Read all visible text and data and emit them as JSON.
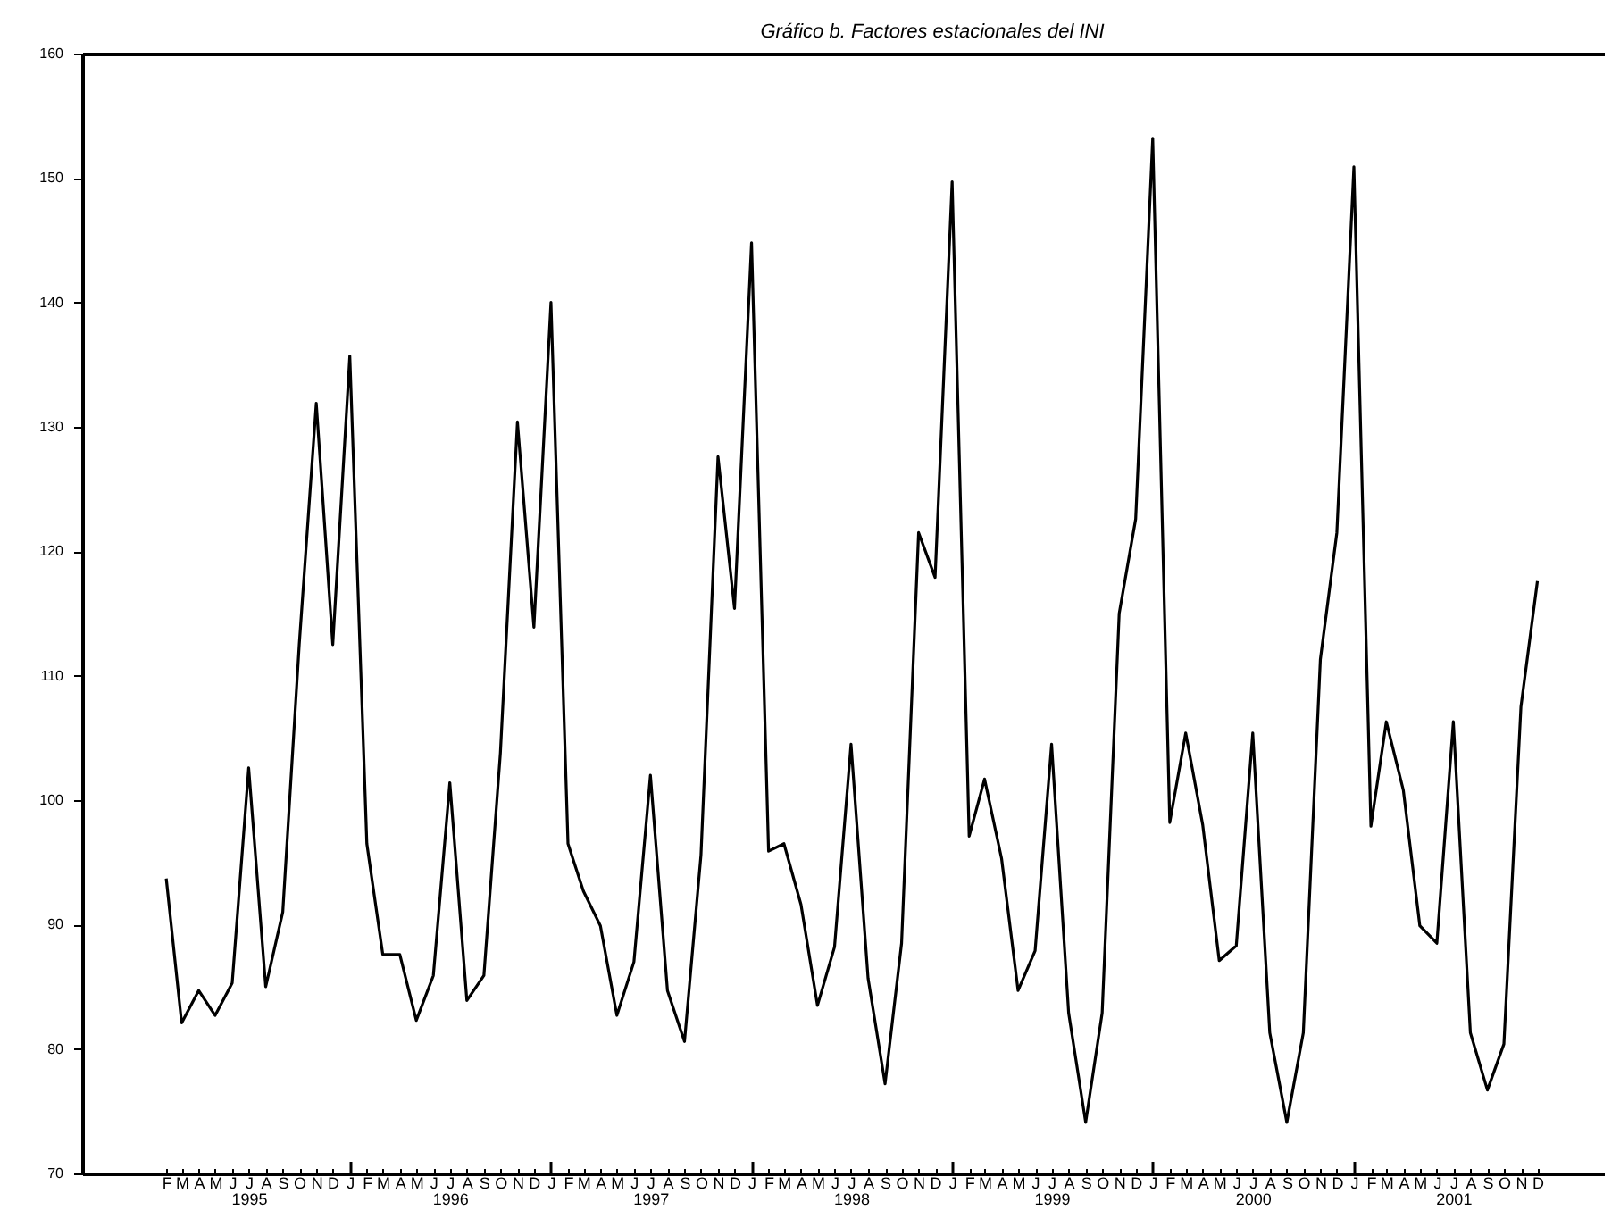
{
  "chart_data": {
    "type": "line",
    "title": "Gráfico b.  Factores estacionales del INI",
    "x": [
      "1995-02",
      "1995-03",
      "1995-04",
      "1995-05",
      "1995-06",
      "1995-07",
      "1995-08",
      "1995-09",
      "1995-10",
      "1995-11",
      "1995-12",
      "1996-01",
      "1996-02",
      "1996-03",
      "1996-04",
      "1996-05",
      "1996-06",
      "1996-07",
      "1996-08",
      "1996-09",
      "1996-10",
      "1996-11",
      "1996-12",
      "1997-01",
      "1997-02",
      "1997-03",
      "1997-04",
      "1997-05",
      "1997-06",
      "1997-07",
      "1997-08",
      "1997-09",
      "1997-10",
      "1997-11",
      "1997-12",
      "1998-01",
      "1998-02",
      "1998-03",
      "1998-04",
      "1998-05",
      "1998-06",
      "1998-07",
      "1998-08",
      "1998-09",
      "1998-10",
      "1998-11",
      "1998-12",
      "1999-01",
      "1999-02",
      "1999-03",
      "1999-04",
      "1999-05",
      "1999-06",
      "1999-07",
      "1999-08",
      "1999-09",
      "1999-10",
      "1999-11",
      "1999-12",
      "2000-01",
      "2000-02",
      "2000-03",
      "2000-04",
      "2000-05",
      "2000-06",
      "2000-07",
      "2000-08",
      "2000-09",
      "2000-10",
      "2000-11",
      "2000-12",
      "2001-01",
      "2001-02",
      "2001-03",
      "2001-04",
      "2001-05",
      "2001-06",
      "2001-07",
      "2001-08",
      "2001-09",
      "2001-10",
      "2001-11",
      "2001-12"
    ],
    "series": [
      {
        "color": "#000000",
        "values": [
          93.7,
          82.1,
          84.7,
          82.7,
          85.3,
          102.6,
          85.0,
          91.0,
          112.5,
          131.9,
          112.5,
          135.7,
          96.5,
          87.6,
          87.6,
          82.3,
          85.9,
          101.4,
          83.9,
          85.9,
          103.8,
          130.4,
          113.9,
          140.0,
          96.5,
          92.7,
          89.9,
          82.7,
          87.0,
          102.0,
          84.7,
          80.6,
          95.6,
          127.6,
          115.4,
          144.8,
          95.9,
          96.5,
          91.6,
          83.5,
          88.2,
          104.5,
          85.7,
          77.2,
          88.5,
          121.5,
          117.9,
          149.7,
          97.1,
          101.7,
          95.3,
          84.7,
          87.9,
          104.5,
          82.9,
          74.1,
          82.9,
          115.0,
          122.6,
          153.2,
          98.2,
          105.4,
          98.0,
          87.1,
          88.3,
          105.4,
          81.3,
          74.1,
          81.3,
          111.3,
          121.5,
          150.9,
          97.9,
          106.3,
          100.8,
          89.9,
          88.5,
          106.3,
          81.3,
          76.7,
          80.4,
          107.5,
          117.6
        ]
      }
    ],
    "xlim": [
      "1994-09",
      "2002-04"
    ],
    "xticks": [
      {
        "value": "1995-02",
        "label": "F"
      },
      {
        "value": "1995-03",
        "label": "M"
      },
      {
        "value": "1995-04",
        "label": "A"
      },
      {
        "value": "1995-05",
        "label": "M"
      },
      {
        "value": "1995-06",
        "label": "J"
      },
      {
        "value": "1995-07",
        "label": "J\n1995"
      },
      {
        "value": "1995-08",
        "label": "A"
      },
      {
        "value": "1995-09",
        "label": "S"
      },
      {
        "value": "1995-10",
        "label": "O"
      },
      {
        "value": "1995-11",
        "label": "N"
      },
      {
        "value": "1995-12",
        "label": "D"
      },
      {
        "value": "1996-01",
        "label": "J"
      },
      {
        "value": "1996-02",
        "label": "F"
      },
      {
        "value": "1996-03",
        "label": "M"
      },
      {
        "value": "1996-04",
        "label": "A"
      },
      {
        "value": "1996-05",
        "label": "M"
      },
      {
        "value": "1996-06",
        "label": "J"
      },
      {
        "value": "1996-07",
        "label": "J\n1996"
      },
      {
        "value": "1996-08",
        "label": "A"
      },
      {
        "value": "1996-09",
        "label": "S"
      },
      {
        "value": "1996-10",
        "label": "O"
      },
      {
        "value": "1996-11",
        "label": "N"
      },
      {
        "value": "1996-12",
        "label": "D"
      },
      {
        "value": "1997-01",
        "label": "J"
      },
      {
        "value": "1997-02",
        "label": "F"
      },
      {
        "value": "1997-03",
        "label": "M"
      },
      {
        "value": "1997-04",
        "label": "A"
      },
      {
        "value": "1997-05",
        "label": "M"
      },
      {
        "value": "1997-06",
        "label": "J"
      },
      {
        "value": "1997-07",
        "label": "J\n1997"
      },
      {
        "value": "1997-08",
        "label": "A"
      },
      {
        "value": "1997-09",
        "label": "S"
      },
      {
        "value": "1997-10",
        "label": "O"
      },
      {
        "value": "1997-11",
        "label": "N"
      },
      {
        "value": "1997-12",
        "label": "D"
      },
      {
        "value": "1998-01",
        "label": "J"
      },
      {
        "value": "1998-02",
        "label": "F"
      },
      {
        "value": "1998-03",
        "label": "M"
      },
      {
        "value": "1998-04",
        "label": "A"
      },
      {
        "value": "1998-05",
        "label": "M"
      },
      {
        "value": "1998-06",
        "label": "J"
      },
      {
        "value": "1998-07",
        "label": "J\n1998"
      },
      {
        "value": "1998-08",
        "label": "A"
      },
      {
        "value": "1998-09",
        "label": "S"
      },
      {
        "value": "1998-10",
        "label": "O"
      },
      {
        "value": "1998-11",
        "label": "N"
      },
      {
        "value": "1998-12",
        "label": "D"
      },
      {
        "value": "1999-01",
        "label": "J"
      },
      {
        "value": "1999-02",
        "label": "F"
      },
      {
        "value": "1999-03",
        "label": "M"
      },
      {
        "value": "1999-04",
        "label": "A"
      },
      {
        "value": "1999-05",
        "label": "M"
      },
      {
        "value": "1999-06",
        "label": "J"
      },
      {
        "value": "1999-07",
        "label": "J\n1999"
      },
      {
        "value": "1999-08",
        "label": "A"
      },
      {
        "value": "1999-09",
        "label": "S"
      },
      {
        "value": "1999-10",
        "label": "O"
      },
      {
        "value": "1999-11",
        "label": "N"
      },
      {
        "value": "1999-12",
        "label": "D"
      },
      {
        "value": "2000-01",
        "label": "J"
      },
      {
        "value": "2000-02",
        "label": "F"
      },
      {
        "value": "2000-03",
        "label": "M"
      },
      {
        "value": "2000-04",
        "label": "A"
      },
      {
        "value": "2000-05",
        "label": "M"
      },
      {
        "value": "2000-06",
        "label": "J"
      },
      {
        "value": "2000-07",
        "label": "J\n2000"
      },
      {
        "value": "2000-08",
        "label": "A"
      },
      {
        "value": "2000-09",
        "label": "S"
      },
      {
        "value": "2000-10",
        "label": "O"
      },
      {
        "value": "2000-11",
        "label": "N"
      },
      {
        "value": "2000-12",
        "label": "D"
      },
      {
        "value": "2001-01",
        "label": "J"
      },
      {
        "value": "2001-02",
        "label": "F"
      },
      {
        "value": "2001-03",
        "label": "M"
      },
      {
        "value": "2001-04",
        "label": "A"
      },
      {
        "value": "2001-05",
        "label": "M"
      },
      {
        "value": "2001-06",
        "label": "J"
      },
      {
        "value": "2001-07",
        "label": "J\n2001"
      },
      {
        "value": "2001-08",
        "label": "A"
      },
      {
        "value": "2001-09",
        "label": "S"
      },
      {
        "value": "2001-10",
        "label": "O"
      },
      {
        "value": "2001-11",
        "label": "N"
      },
      {
        "value": "2001-12",
        "label": "D"
      }
    ],
    "ylim": [
      70,
      160
    ],
    "yticks": [
      70,
      80,
      90,
      100,
      110,
      120,
      130,
      140,
      150,
      160
    ]
  }
}
